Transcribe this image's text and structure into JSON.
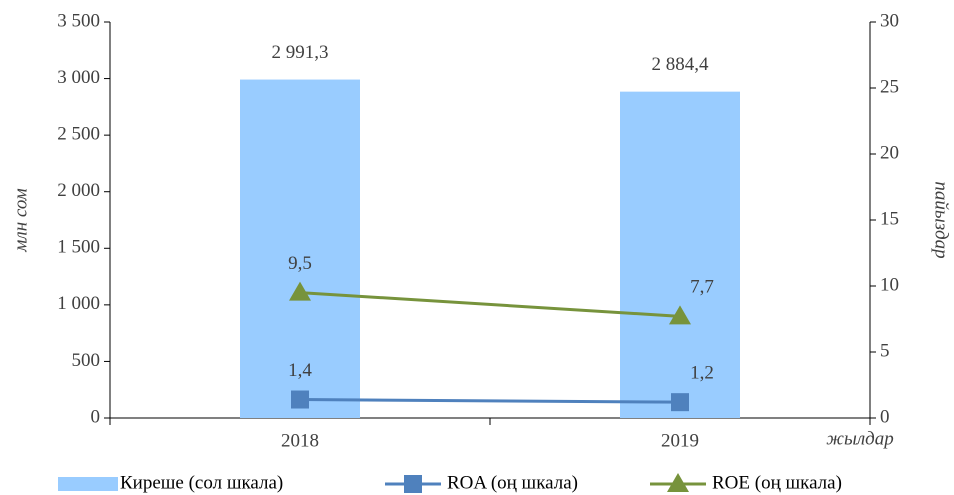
{
  "chart_data": {
    "type": "bar",
    "categories": [
      "2018",
      "2019"
    ],
    "series": [
      {
        "name": "Киреше (сол шкала)",
        "type": "bar",
        "color": "#99ccff",
        "values": [
          2991.3,
          2884.4
        ],
        "value_labels": [
          "2 991,3",
          "2 884,4"
        ]
      },
      {
        "name": "ROA (оң шкала)",
        "type": "line",
        "axis": "y2",
        "marker": "square",
        "color": "#4f81bd",
        "values": [
          1.4,
          1.2
        ],
        "value_labels": [
          "1,4",
          "1,2"
        ]
      },
      {
        "name": "ROE (оң шкала)",
        "type": "line",
        "axis": "y2",
        "marker": "triangle",
        "color": "#77933c",
        "values": [
          9.5,
          7.7
        ],
        "value_labels": [
          "9,5",
          "7,7"
        ]
      }
    ],
    "ylabel": "млн сом",
    "y2label": "пайыздар",
    "xlabel": "жылдар",
    "ylim": [
      0,
      3500
    ],
    "yticks": [
      0,
      500,
      {
        "value": 1000,
        "label": "1 000"
      },
      {
        "value": 1500,
        "label": "1 500"
      },
      {
        "value": 2000,
        "label": "2 000"
      },
      {
        "value": 2500,
        "label": "2 500"
      },
      {
        "value": 3000,
        "label": "3 000"
      },
      {
        "value": 3500,
        "label": "3 500"
      }
    ],
    "y2lim": [
      0,
      30
    ],
    "y2ticks": [
      0,
      5,
      10,
      15,
      20,
      25,
      30
    ],
    "legend": "bottom"
  }
}
